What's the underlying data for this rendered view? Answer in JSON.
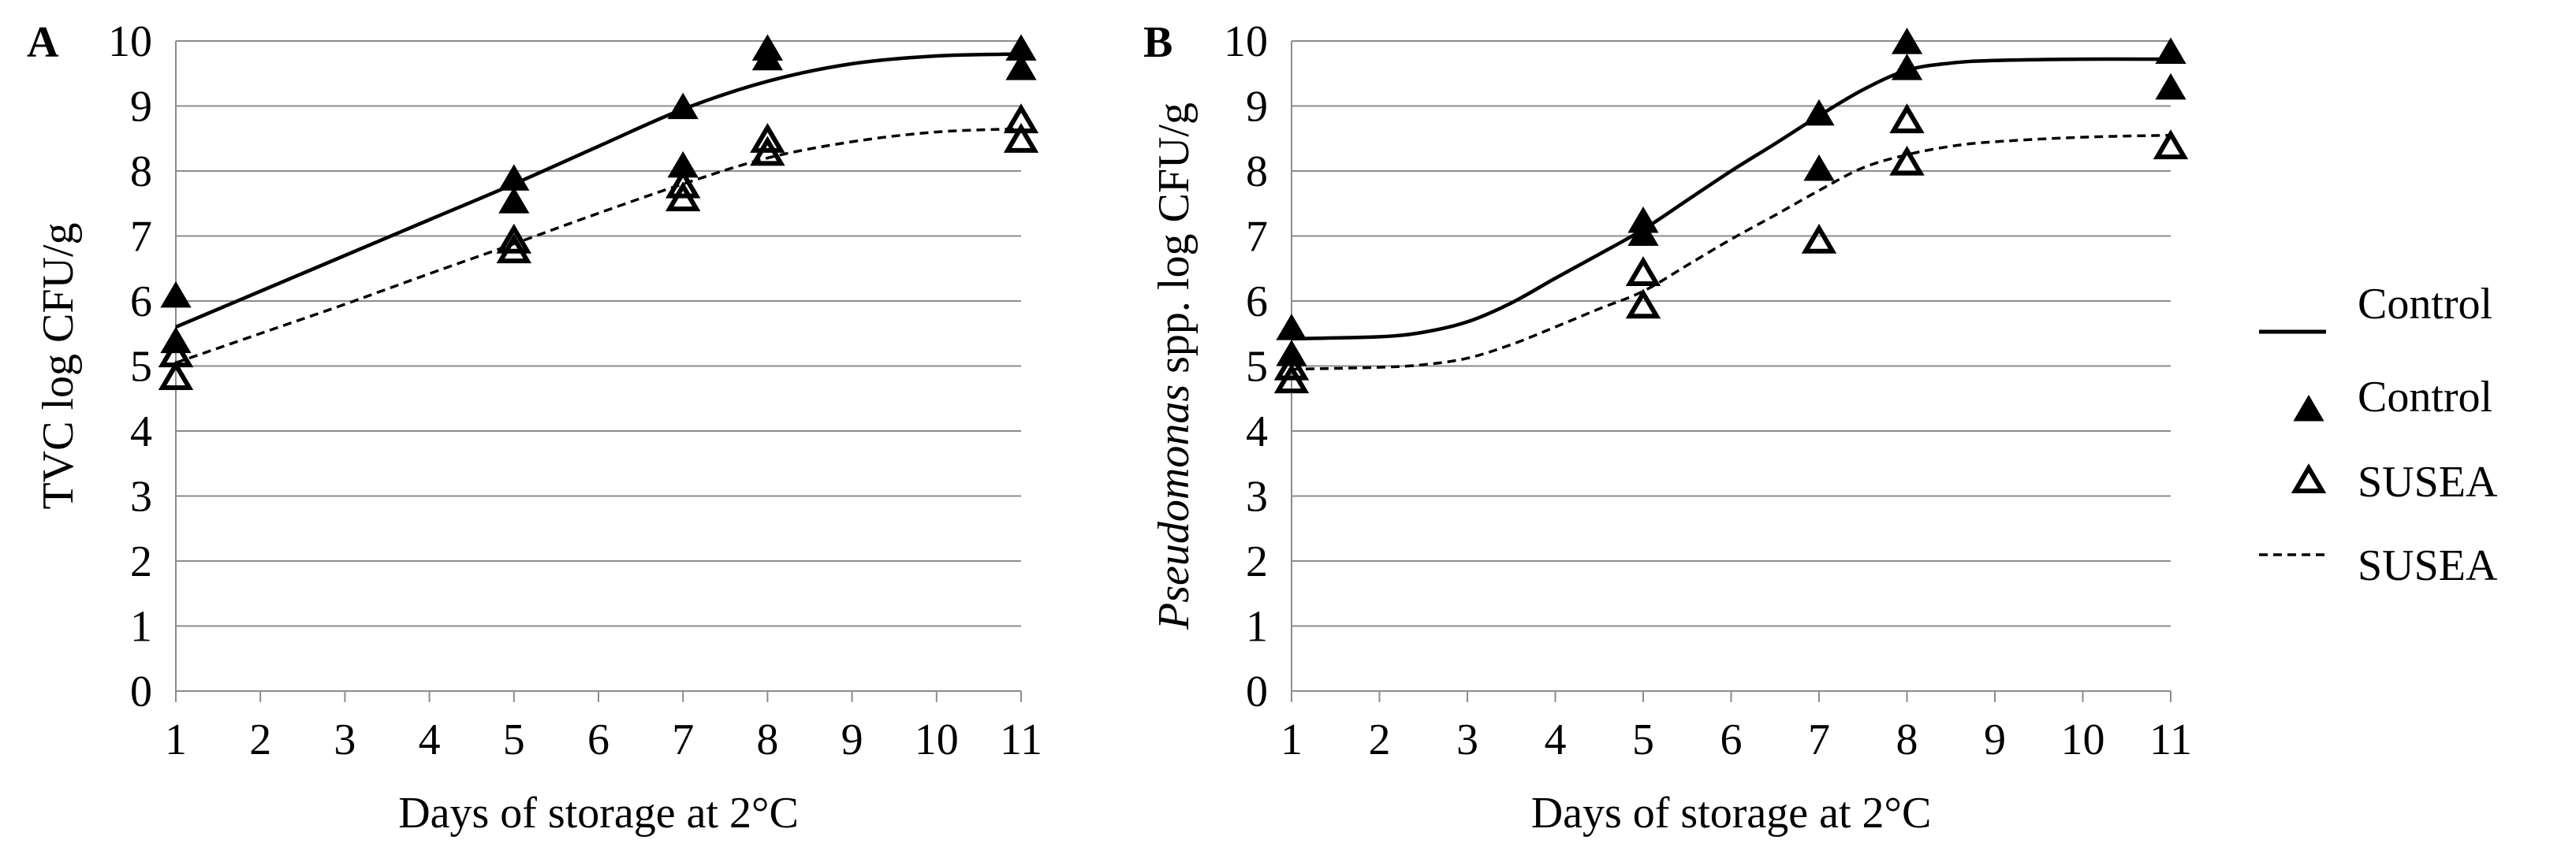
{
  "chart_data": [
    {
      "type": "scatter",
      "panel": "A",
      "xlabel": "Days of storage at 2°C",
      "ylabel": "TVC log CFU/g",
      "xlim": [
        1,
        11
      ],
      "ylim": [
        0,
        10
      ],
      "xticks": [
        1,
        2,
        3,
        4,
        5,
        6,
        7,
        8,
        9,
        10,
        11
      ],
      "yticks": [
        0,
        1,
        2,
        3,
        4,
        5,
        6,
        7,
        8,
        9,
        10
      ],
      "grid": true,
      "series": [
        {
          "name": "Control",
          "kind": "line",
          "style": "solid",
          "x": [
            1,
            2,
            3,
            4,
            5,
            6,
            7,
            8,
            9,
            10,
            11
          ],
          "y": [
            5.6,
            6.15,
            6.7,
            7.25,
            7.8,
            8.38,
            8.95,
            9.38,
            9.65,
            9.77,
            9.8
          ]
        },
        {
          "name": "Control",
          "kind": "markers",
          "marker": "filled-triangle",
          "x": [
            1,
            1,
            5,
            5,
            7,
            7,
            8,
            8,
            11,
            11
          ],
          "y": [
            6.05,
            5.35,
            7.85,
            7.5,
            8.95,
            8.05,
            9.85,
            9.7,
            9.85,
            9.55
          ]
        },
        {
          "name": "SUSEA",
          "kind": "markers",
          "marker": "open-triangle",
          "x": [
            1,
            1,
            5,
            5,
            7,
            7,
            8,
            8,
            11,
            11
          ],
          "y": [
            5.15,
            4.8,
            6.9,
            6.75,
            7.75,
            7.55,
            8.45,
            8.25,
            8.75,
            8.45
          ]
        },
        {
          "name": "SUSEA",
          "kind": "line",
          "style": "dashed",
          "x": [
            1,
            2,
            3,
            4,
            5,
            6,
            7,
            8,
            9,
            10,
            11
          ],
          "y": [
            5.05,
            5.5,
            5.95,
            6.42,
            6.88,
            7.35,
            7.8,
            8.2,
            8.45,
            8.6,
            8.65
          ]
        }
      ]
    },
    {
      "type": "scatter",
      "panel": "B",
      "xlabel": "Days of storage at 2°C",
      "ylabel_italic": "Pseudomonas",
      "ylabel_rest": " spp. log CFU/g",
      "xlim": [
        1,
        11
      ],
      "ylim": [
        0,
        10
      ],
      "xticks": [
        1,
        2,
        3,
        4,
        5,
        6,
        7,
        8,
        9,
        10,
        11
      ],
      "yticks": [
        0,
        1,
        2,
        3,
        4,
        5,
        6,
        7,
        8,
        9,
        10
      ],
      "grid": true,
      "series": [
        {
          "name": "Control",
          "kind": "line",
          "style": "solid",
          "x": [
            1,
            2,
            2.5,
            3,
            3.5,
            4,
            4.5,
            5,
            5.5,
            6,
            6.5,
            7,
            7.5,
            8,
            8.5,
            9,
            10,
            11
          ],
          "y": [
            5.42,
            5.45,
            5.52,
            5.68,
            5.97,
            6.35,
            6.72,
            7.1,
            7.55,
            8.0,
            8.42,
            8.85,
            9.25,
            9.55,
            9.66,
            9.7,
            9.72,
            9.72
          ]
        },
        {
          "name": "Control",
          "kind": "markers",
          "marker": "filled-triangle",
          "x": [
            1,
            1,
            5,
            5,
            7,
            7,
            8,
            8,
            11,
            11
          ],
          "y": [
            5.55,
            5.15,
            7.2,
            7.0,
            8.85,
            8.0,
            9.95,
            9.55,
            9.8,
            9.25
          ]
        },
        {
          "name": "SUSEA",
          "kind": "markers",
          "marker": "open-triangle",
          "x": [
            1,
            1,
            5,
            5,
            7,
            8,
            8,
            11
          ],
          "y": [
            4.95,
            4.75,
            6.4,
            5.9,
            6.9,
            8.75,
            8.1,
            8.35
          ]
        },
        {
          "name": "SUSEA",
          "kind": "line",
          "style": "dashed",
          "x": [
            1,
            2,
            2.5,
            3,
            3.5,
            4,
            4.5,
            5,
            5.5,
            6,
            6.5,
            7,
            7.5,
            8,
            8.5,
            9,
            10,
            11
          ],
          "y": [
            4.95,
            4.98,
            5.02,
            5.12,
            5.33,
            5.6,
            5.88,
            6.15,
            6.55,
            6.95,
            7.32,
            7.7,
            8.05,
            8.25,
            8.38,
            8.45,
            8.52,
            8.55
          ]
        }
      ]
    }
  ],
  "legend": {
    "placement": "right",
    "items": [
      {
        "label": "Control",
        "symbol": "solid-line"
      },
      {
        "label": "Control",
        "symbol": "filled-triangle"
      },
      {
        "label": "SUSEA",
        "symbol": "open-triangle"
      },
      {
        "label": "SUSEA",
        "symbol": "dashed-line"
      }
    ]
  }
}
